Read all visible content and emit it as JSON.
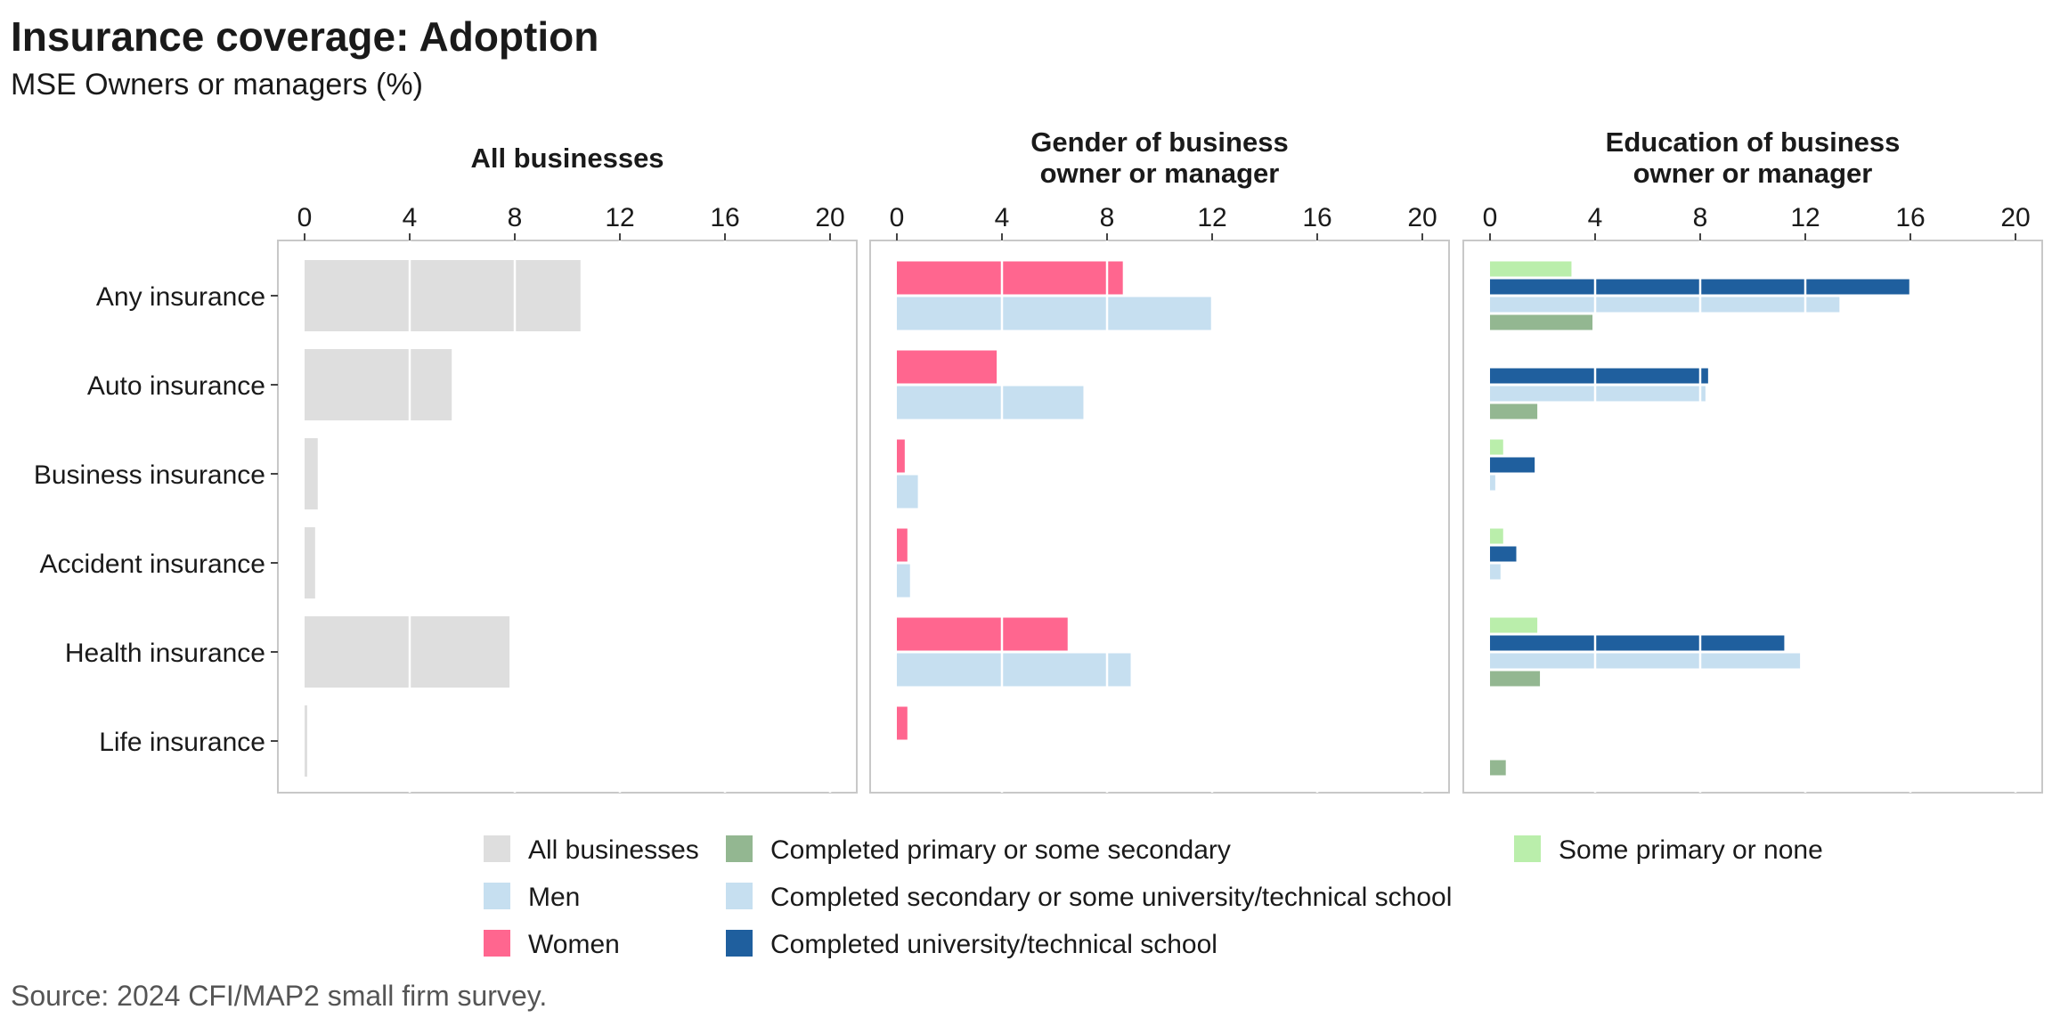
{
  "title": "Insurance coverage: Adoption",
  "subtitle": "MSE Owners or managers (%)",
  "source": "Source: 2024 CFI/MAP2 small firm survey.",
  "chart_data": {
    "type": "bar",
    "orientation": "horizontal",
    "categories": [
      "Any insurance",
      "Auto insurance",
      "Business insurance",
      "Accident insurance",
      "Health insurance",
      "Life insurance"
    ],
    "xlim": [
      0,
      21
    ],
    "x_ticks": [
      0,
      4,
      8,
      12,
      16,
      20
    ],
    "grid": true,
    "legend_position": "bottom",
    "panels": [
      {
        "title": "All businesses",
        "series": [
          {
            "name": "All businesses",
            "color": "#dedede",
            "values": [
              10.5,
              5.6,
              0.5,
              0.4,
              7.8,
              0.1
            ]
          }
        ]
      },
      {
        "title": "Gender of business owner or manager",
        "series": [
          {
            "name": "Women",
            "color": "#ff668f",
            "values": [
              8.6,
              3.8,
              0.3,
              0.4,
              6.5,
              0.4
            ]
          },
          {
            "name": "Men",
            "color": "#c6dff0",
            "values": [
              12.0,
              7.1,
              0.8,
              0.5,
              8.9,
              0
            ]
          }
        ]
      },
      {
        "title": "Education of business owner or manager",
        "series": [
          {
            "name": "Some primary or none",
            "color": "#baeeab",
            "values": [
              3.1,
              0,
              0.5,
              0.5,
              1.8,
              0
            ]
          },
          {
            "name": "Completed university/technical school",
            "color": "#1f5f9e",
            "values": [
              16.0,
              8.3,
              1.7,
              1.0,
              11.2,
              0
            ]
          },
          {
            "name": "Completed secondary or some university/technical school",
            "color": "#c6dff0",
            "values": [
              13.3,
              8.2,
              0.2,
              0.4,
              11.8,
              0
            ]
          },
          {
            "name": "Completed primary or some secondary",
            "color": "#93b791",
            "values": [
              3.9,
              1.8,
              0,
              0,
              1.9,
              0.6
            ]
          }
        ]
      }
    ],
    "legend": [
      {
        "name": "All businesses",
        "color": "#dedede"
      },
      {
        "name": "Men",
        "color": "#c6dff0"
      },
      {
        "name": "Women",
        "color": "#ff668f"
      },
      {
        "name": "Completed primary or some secondary",
        "color": "#93b791"
      },
      {
        "name": "Completed secondary or some university/technical school",
        "color": "#c6dff0"
      },
      {
        "name": "Completed university/technical school",
        "color": "#1f5f9e"
      },
      {
        "name": "Some primary or none",
        "color": "#baeeab"
      }
    ]
  }
}
